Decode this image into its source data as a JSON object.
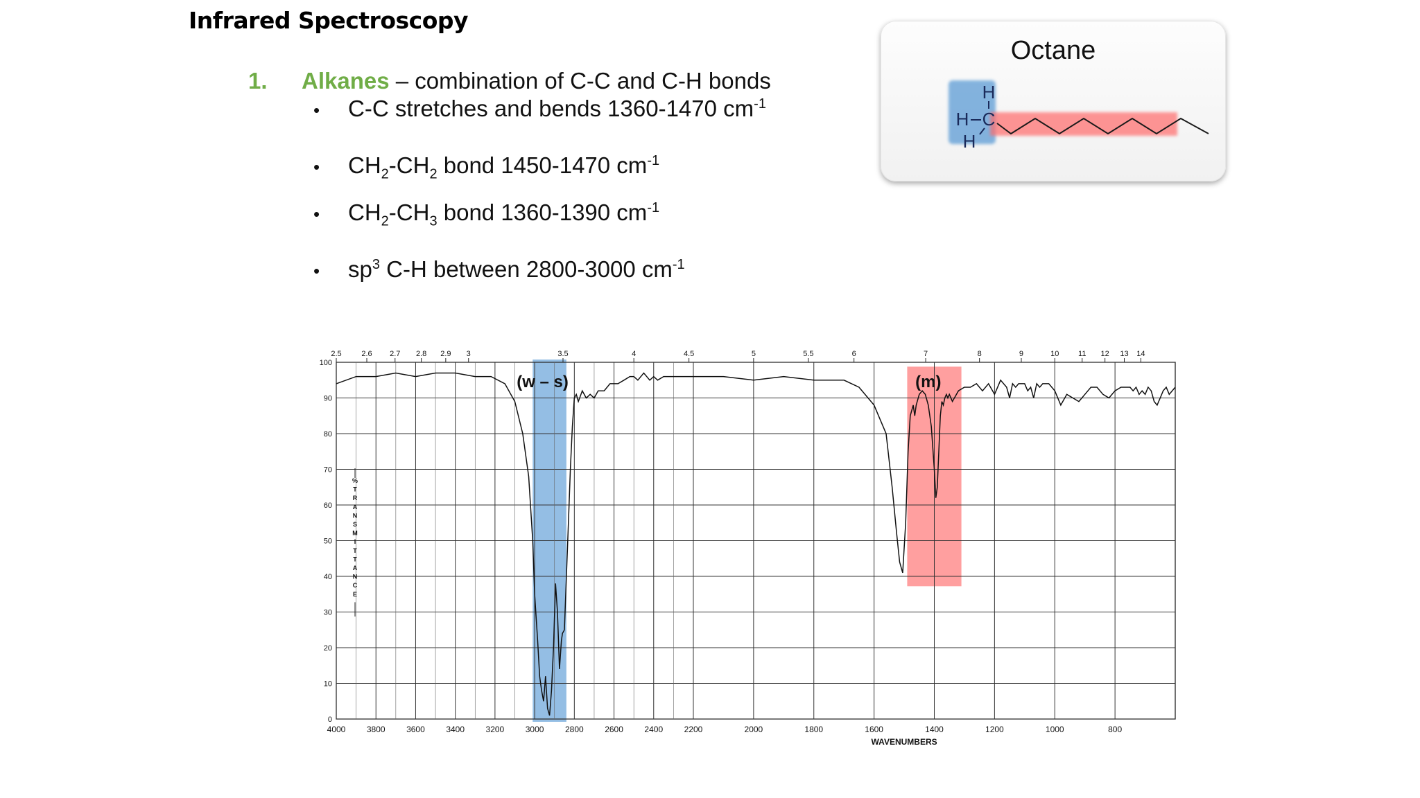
{
  "slide": {
    "title": "Infrared Spectroscopy",
    "item": {
      "number": "1.",
      "keyword": "Alkanes",
      "rest": " – combination of C-C and C-H bonds"
    },
    "bullets": [
      {
        "parts": [
          [
            "t",
            "C-C stretches and bends 1360-1470 cm"
          ],
          [
            "sup",
            "-1"
          ]
        ]
      },
      {
        "parts": [
          [
            "t",
            "CH"
          ],
          [
            "sub",
            "2"
          ],
          [
            "t",
            "-CH"
          ],
          [
            "sub",
            "2"
          ],
          [
            "t",
            " bond 1450-1470 cm"
          ],
          [
            "sup",
            "-1"
          ]
        ]
      },
      {
        "parts": [
          [
            "t",
            "CH"
          ],
          [
            "sub",
            "2"
          ],
          [
            "t",
            "-CH"
          ],
          [
            "sub",
            "3"
          ],
          [
            "t",
            " bond 1360-1390 cm"
          ],
          [
            "sup",
            "-1"
          ]
        ]
      },
      {
        "parts": [
          [
            "t",
            "sp"
          ],
          [
            "sup",
            "3"
          ],
          [
            "t",
            " C-H between 2800-3000 cm"
          ],
          [
            "sup",
            "-1"
          ]
        ]
      }
    ]
  },
  "molecule": {
    "title": "Octane",
    "atoms": {
      "h_top": "H",
      "h_left": "H",
      "carbon": "C",
      "h_bottom": "H"
    }
  },
  "chart_data": {
    "type": "line",
    "xlabel": "WAVENUMBERS",
    "ylabel": "% TRANSMITTANCE",
    "y_tick_labels": [
      "100",
      "90",
      "80",
      "70",
      "60",
      "50",
      "40",
      "30",
      "20",
      "10",
      "0"
    ],
    "x_tick_labels": [
      "4000",
      "3800",
      "3600",
      "3400",
      "3200",
      "3000",
      "2800",
      "2600",
      "2400",
      "2200",
      "2000",
      "1800",
      "1600",
      "1400",
      "1200",
      "1000",
      "800"
    ],
    "top_tick_labels": [
      "2.5",
      "2.6",
      "2.7",
      "2.8",
      "2.9",
      "3",
      "3.5",
      "4",
      "4.5",
      "5",
      "5.5",
      "6",
      "7",
      "8",
      "9",
      "10",
      "11",
      "12",
      "13",
      "14"
    ],
    "ylim": [
      0,
      100
    ],
    "grid": true,
    "annotations": [
      {
        "label": "(w – s)",
        "color": "#5b9bd5"
      },
      {
        "label": "(m)",
        "color": "#ff6b6b"
      }
    ],
    "series": [
      {
        "x": [
          4000,
          3900,
          3800,
          3700,
          3600,
          3500,
          3400,
          3300,
          3220,
          3150,
          3100,
          3060,
          3030,
          3010,
          3000,
          2985,
          2975,
          2965,
          2955,
          2945,
          2935,
          2925,
          2915,
          2905,
          2895,
          2885,
          2875,
          2865,
          2860,
          2850,
          2840,
          2830,
          2820,
          2810,
          2800,
          2790,
          2780,
          2760,
          2740,
          2720,
          2700,
          2680,
          2650,
          2620,
          2580,
          2550,
          2520,
          2500,
          2480,
          2450,
          2420,
          2400,
          2380,
          2350,
          2300,
          2250,
          2200,
          2100,
          2000,
          1900,
          1800,
          1700,
          1650,
          1600,
          1560,
          1540,
          1525,
          1515,
          1505,
          1495,
          1487,
          1480,
          1470,
          1465,
          1460,
          1450,
          1440,
          1430,
          1420,
          1410,
          1400,
          1395,
          1390,
          1385,
          1380,
          1375,
          1370,
          1365,
          1360,
          1355,
          1350,
          1340,
          1320,
          1300,
          1280,
          1260,
          1240,
          1220,
          1200,
          1180,
          1160,
          1150,
          1140,
          1130,
          1120,
          1110,
          1100,
          1090,
          1080,
          1070,
          1060,
          1050,
          1040,
          1020,
          1000,
          980,
          960,
          940,
          920,
          900,
          880,
          860,
          840,
          820,
          800,
          780,
          760,
          750,
          740,
          730,
          720,
          710,
          700,
          690,
          680,
          670,
          660,
          650,
          640,
          630,
          620,
          600
        ],
        "y": [
          94,
          96,
          96,
          97,
          96,
          97,
          97,
          96,
          96,
          94,
          89,
          80,
          68,
          50,
          35,
          22,
          12,
          8,
          5,
          12,
          3,
          1,
          8,
          20,
          38,
          30,
          14,
          22,
          24,
          25,
          40,
          55,
          70,
          82,
          90,
          91,
          89,
          92,
          90,
          91,
          90,
          92,
          92,
          94,
          94,
          95,
          96,
          96,
          95,
          97,
          95,
          96,
          95,
          96,
          96,
          96,
          96,
          96,
          95,
          96,
          95,
          95,
          93,
          88,
          80,
          65,
          52,
          44,
          41,
          55,
          75,
          85,
          88,
          85,
          88,
          91,
          92,
          91,
          88,
          82,
          70,
          62,
          65,
          75,
          85,
          89,
          88,
          90,
          91,
          90,
          91,
          89,
          92,
          93,
          93,
          94,
          92,
          94,
          91,
          95,
          93,
          90,
          94,
          93,
          94,
          94,
          94,
          92,
          93,
          90,
          94,
          93,
          94,
          94,
          92,
          88,
          91,
          90,
          89,
          91,
          93,
          93,
          91,
          90,
          92,
          93,
          93,
          93,
          92,
          93,
          91,
          92,
          91,
          93,
          92,
          89,
          88,
          90,
          92,
          93,
          91,
          93
        ]
      }
    ]
  }
}
